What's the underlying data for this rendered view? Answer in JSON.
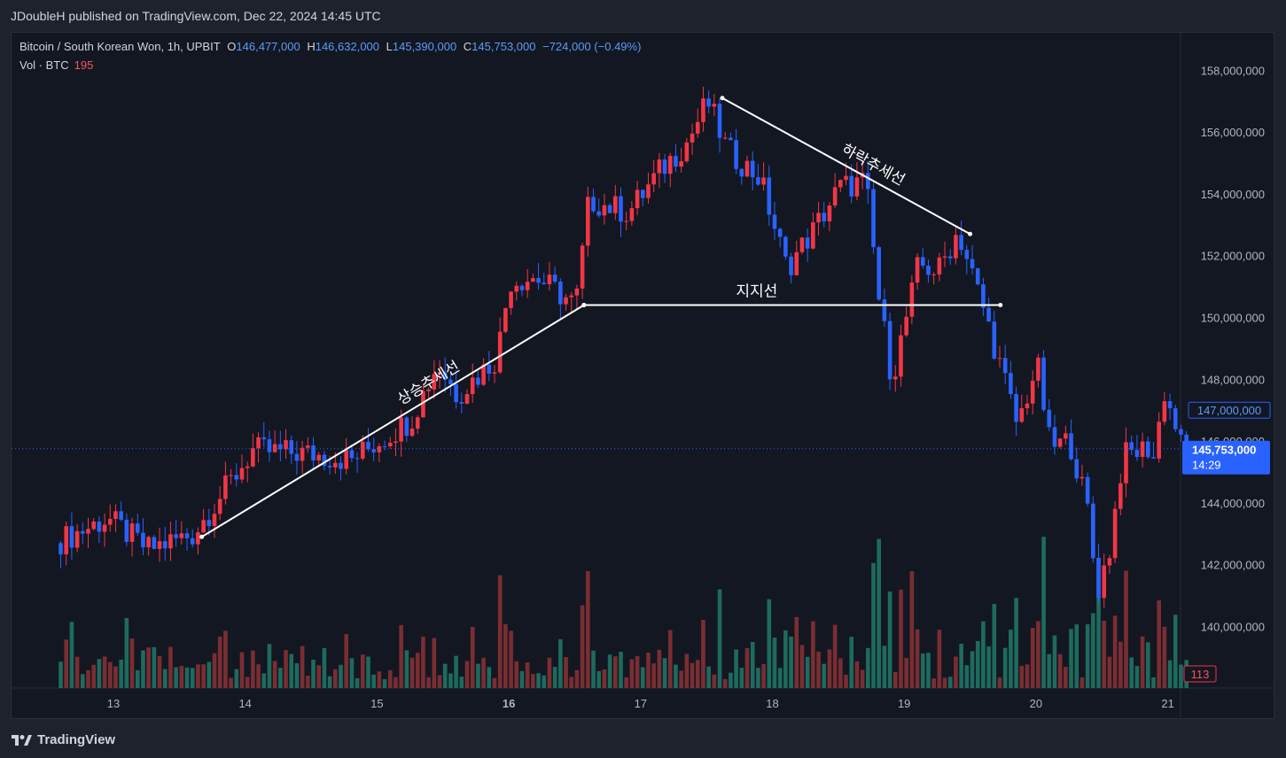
{
  "header": {
    "published": "JDoubleH published on TradingView.com, Dec 22, 2024 14:45 UTC"
  },
  "legend": {
    "symbol": "Bitcoin / South Korean Won, 1h, UPBIT",
    "open_label": "O",
    "open": "146,477,000",
    "high_label": "H",
    "high": "146,632,000",
    "low_label": "L",
    "low": "145,390,000",
    "close_label": "C",
    "close": "145,753,000",
    "change": "−724,000 (−0.49%)",
    "vol_label": "Vol · BTC",
    "vol_value": "195"
  },
  "footer": {
    "brand": "TradingView"
  },
  "colors": {
    "up": "#f23645",
    "down": "#2962ff",
    "vol_up": "#7a2e32",
    "vol_down": "#1d6b5e",
    "background": "#131722",
    "line": "#ffffff"
  },
  "chart_data": {
    "type": "candlestick",
    "title": "Bitcoin / South Korean Won, 1h, UPBIT",
    "x_tick_labels": [
      "13",
      "14",
      "15",
      "16",
      "17",
      "18",
      "19",
      "20",
      "21"
    ],
    "y_tick_labels": [
      "158,000,000",
      "156,000,000",
      "154,000,000",
      "152,000,000",
      "150,000,000",
      "148,000,000",
      "146,000,000",
      "144,000,000",
      "142,000,000",
      "140,000,000"
    ],
    "y_ticks": [
      158000000,
      156000000,
      154000000,
      152000000,
      150000000,
      148000000,
      146000000,
      144000000,
      142000000,
      140000000
    ],
    "ylim": [
      137800000,
      159700000
    ],
    "price_tags": {
      "alert_level": {
        "value": 147000000,
        "label": "147,000,000"
      },
      "last_price": {
        "value": 145753000,
        "label": "145,753,000",
        "countdown": "14:29"
      },
      "volume_last": "113"
    },
    "key_points": [
      {
        "day": 12.6,
        "price": 142700000
      },
      {
        "day": 13.0,
        "price": 143500000
      },
      {
        "day": 13.3,
        "price": 142500000
      },
      {
        "day": 13.65,
        "price": 143000000
      },
      {
        "day": 14.1,
        "price": 145700000
      },
      {
        "day": 14.5,
        "price": 145600000
      },
      {
        "day": 14.85,
        "price": 145400000
      },
      {
        "day": 15.3,
        "price": 146700000
      },
      {
        "day": 15.5,
        "price": 148500000
      },
      {
        "day": 15.65,
        "price": 147500000
      },
      {
        "day": 15.95,
        "price": 148700000
      },
      {
        "day": 16.05,
        "price": 151200000
      },
      {
        "day": 16.25,
        "price": 151300000
      },
      {
        "day": 16.55,
        "price": 150400000
      },
      {
        "day": 16.65,
        "price": 153800000
      },
      {
        "day": 16.95,
        "price": 153400000
      },
      {
        "day": 17.2,
        "price": 154800000
      },
      {
        "day": 17.4,
        "price": 155700000
      },
      {
        "day": 17.55,
        "price": 157000000
      },
      {
        "day": 17.7,
        "price": 155400000
      },
      {
        "day": 17.95,
        "price": 154500000
      },
      {
        "day": 18.15,
        "price": 151600000
      },
      {
        "day": 18.35,
        "price": 152800000
      },
      {
        "day": 18.55,
        "price": 154200000
      },
      {
        "day": 18.75,
        "price": 154400000
      },
      {
        "day": 18.85,
        "price": 150600000
      },
      {
        "day": 18.95,
        "price": 148000000
      },
      {
        "day": 19.15,
        "price": 151700000
      },
      {
        "day": 19.3,
        "price": 151500000
      },
      {
        "day": 19.45,
        "price": 152800000
      },
      {
        "day": 19.65,
        "price": 150200000
      },
      {
        "day": 19.8,
        "price": 148000000
      },
      {
        "day": 19.9,
        "price": 146500000
      },
      {
        "day": 20.05,
        "price": 148500000
      },
      {
        "day": 20.15,
        "price": 145800000
      },
      {
        "day": 20.3,
        "price": 146000000
      },
      {
        "day": 20.45,
        "price": 143500000
      },
      {
        "day": 20.5,
        "price": 141000000
      },
      {
        "day": 20.6,
        "price": 142500000
      },
      {
        "day": 20.7,
        "price": 145500000
      },
      {
        "day": 20.9,
        "price": 145800000
      },
      {
        "day": 20.95,
        "price": 145300000
      },
      {
        "day": 21.0,
        "price": 147800000
      },
      {
        "day": 21.1,
        "price": 146500000
      },
      {
        "day": 21.15,
        "price": 145753000
      }
    ],
    "drawings": [
      {
        "type": "trendline",
        "label": "상승추세선",
        "p1": {
          "day": 13.67,
          "price": 142900000
        },
        "p2": {
          "day": 16.57,
          "price": 150400000
        }
      },
      {
        "type": "horizontal",
        "label": "지지선",
        "p1": {
          "day": 16.57,
          "price": 150400000
        },
        "p2": {
          "day": 19.73,
          "price": 150400000
        }
      },
      {
        "type": "trendline",
        "label": "하락추세선",
        "p1": {
          "day": 17.62,
          "price": 157100000
        },
        "p2": {
          "day": 19.5,
          "price": 152700000
        }
      }
    ]
  }
}
